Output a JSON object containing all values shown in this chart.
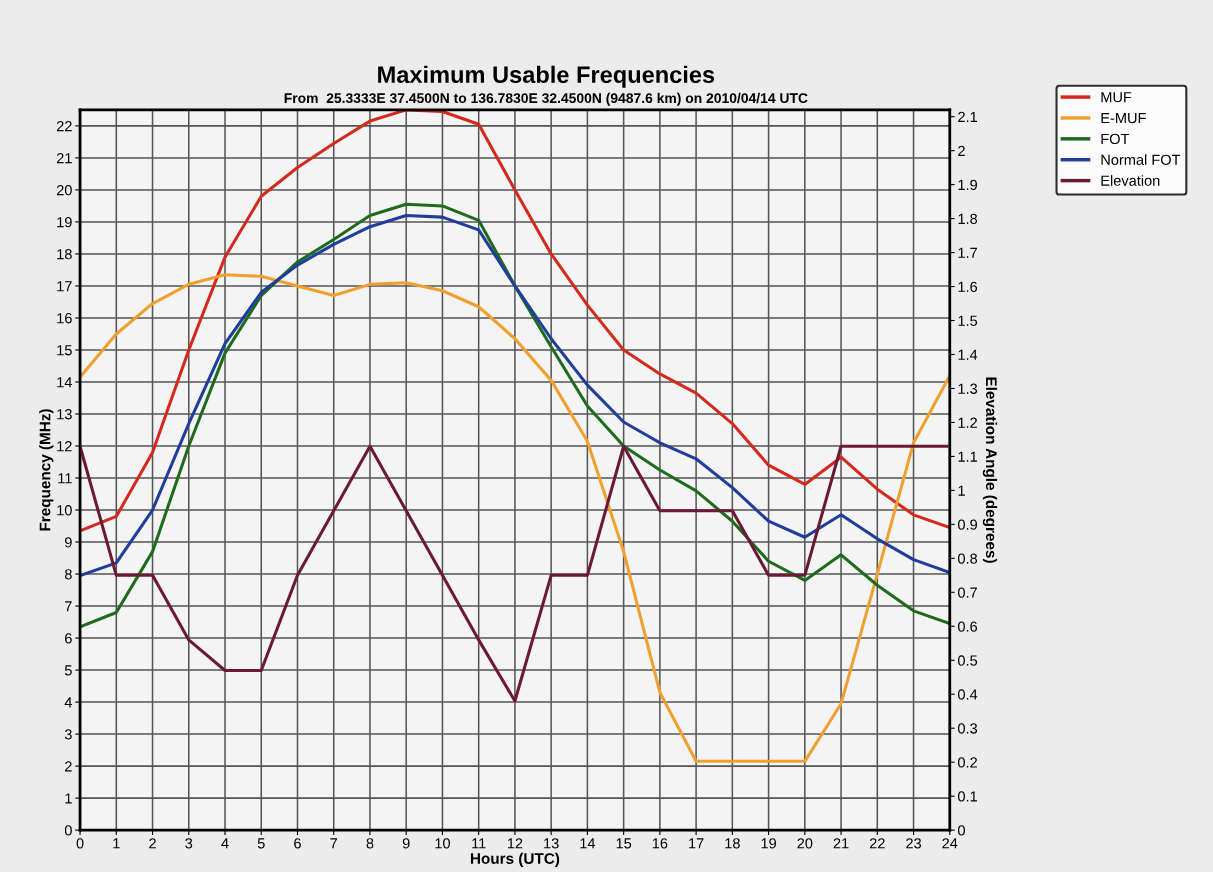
{
  "chart_data": {
    "type": "line",
    "title": "Maximum Usable Frequencies",
    "subtitle": "From  25.3333E 37.4500N to 136.7830E 32.4500N (9487.6 km) on 2010/04/14 UTC",
    "xlabel": "Hours (UTC)",
    "ylabel": "Frequency (MHz)",
    "y2label": "Elevation Angle (degrees)",
    "x": [
      0,
      1,
      2,
      3,
      4,
      5,
      6,
      7,
      8,
      9,
      10,
      11,
      12,
      13,
      14,
      15,
      16,
      17,
      18,
      19,
      20,
      21,
      22,
      23,
      24
    ],
    "series": [
      {
        "name": "MUF",
        "color": "#d42a1e",
        "values": [
          9.35,
          9.8,
          11.8,
          15.0,
          17.9,
          19.8,
          20.7,
          21.45,
          22.15,
          22.5,
          22.45,
          22.05,
          20.0,
          18.0,
          16.4,
          15.0,
          14.25,
          13.65,
          12.7,
          11.4,
          10.8,
          11.65,
          10.65,
          9.85,
          9.45
        ]
      },
      {
        "name": "E-MUF",
        "color": "#f0a030",
        "values": [
          14.15,
          15.5,
          16.45,
          17.05,
          17.35,
          17.3,
          17.0,
          16.7,
          17.05,
          17.1,
          16.85,
          16.35,
          15.35,
          14.05,
          12.15,
          8.7,
          4.3,
          2.15,
          2.15,
          2.15,
          2.15,
          3.95,
          8.0,
          12.1,
          14.2
        ]
      },
      {
        "name": "FOT",
        "color": "#1e6b1e",
        "values": [
          6.35,
          6.8,
          8.7,
          12.0,
          14.9,
          16.7,
          17.75,
          18.45,
          19.2,
          19.55,
          19.5,
          19.05,
          17.0,
          15.1,
          13.25,
          12.0,
          11.25,
          10.6,
          9.65,
          8.4,
          7.8,
          8.6,
          7.65,
          6.85,
          6.45
        ]
      },
      {
        "name": "Normal FOT",
        "color": "#1f3d9a",
        "values": [
          7.95,
          8.35,
          10.0,
          12.7,
          15.2,
          16.8,
          17.65,
          18.3,
          18.85,
          19.2,
          19.15,
          18.75,
          17.0,
          15.35,
          13.9,
          12.75,
          12.1,
          11.6,
          10.7,
          9.65,
          9.15,
          9.85,
          9.1,
          8.45,
          8.05
        ]
      },
      {
        "name": "Elevation",
        "color": "#6b1a35",
        "axis": "y2",
        "values": [
          1.13,
          0.75,
          0.75,
          0.56,
          0.47,
          0.47,
          0.75,
          0.94,
          1.13,
          0.94,
          0.75,
          0.56,
          0.38,
          0.75,
          0.75,
          1.13,
          0.94,
          0.94,
          0.94,
          0.75,
          0.75,
          1.13,
          1.13,
          1.13,
          1.13
        ]
      }
    ],
    "xlim": [
      0,
      24
    ],
    "xticks": [
      0,
      1,
      2,
      3,
      4,
      5,
      6,
      7,
      8,
      9,
      10,
      11,
      12,
      13,
      14,
      15,
      16,
      17,
      18,
      19,
      20,
      21,
      22,
      23,
      24
    ],
    "ylim": [
      0,
      22.5
    ],
    "yticks": [
      0,
      1,
      2,
      3,
      4,
      5,
      6,
      7,
      8,
      9,
      10,
      11,
      12,
      13,
      14,
      15,
      16,
      17,
      18,
      19,
      20,
      21,
      22
    ],
    "y2lim": [
      0,
      2.12
    ],
    "y2ticks": [
      0,
      0.1,
      0.2,
      0.3,
      0.4,
      0.5,
      0.6,
      0.7,
      0.8,
      0.9,
      1,
      1.1,
      1.2,
      1.3,
      1.4,
      1.5,
      1.6,
      1.7,
      1.8,
      1.9,
      2,
      2.1
    ],
    "grid": true,
    "legend": "top right",
    "marker": "none",
    "line_style": "solid"
  }
}
